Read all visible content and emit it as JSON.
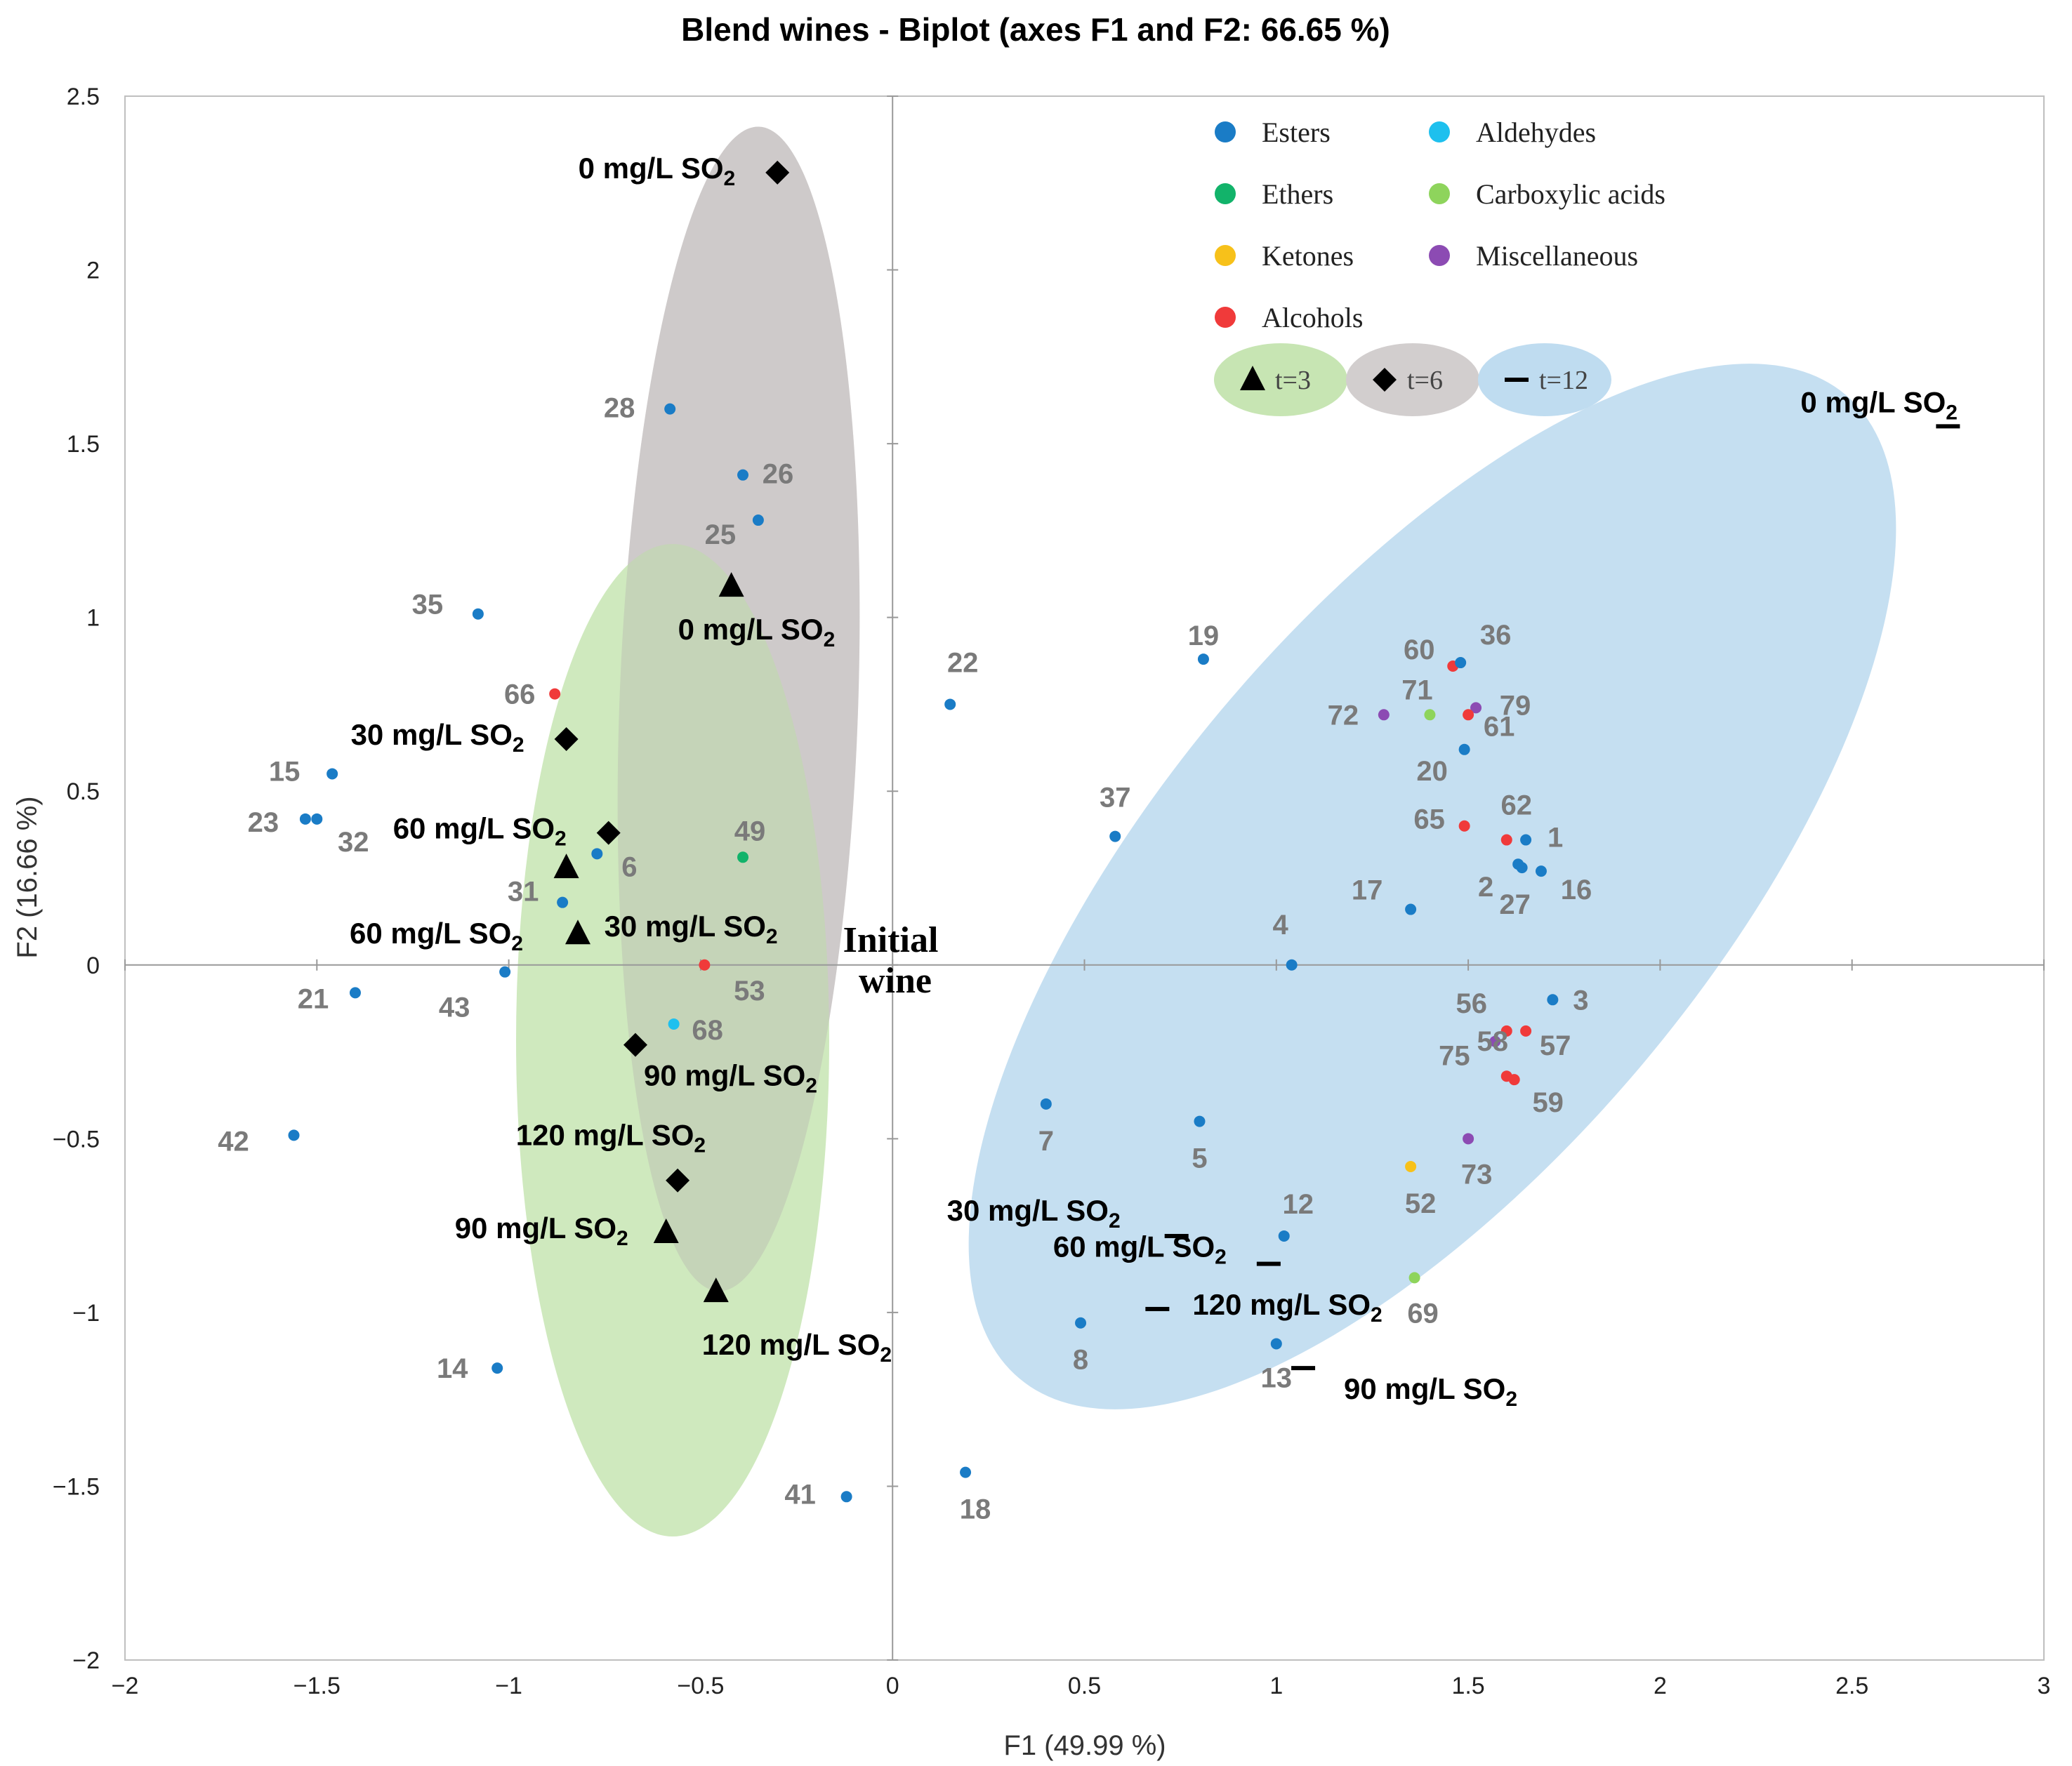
{
  "chart_data": {
    "type": "scatter",
    "title": "Blend wines - Biplot (axes F1 and F2: 66.65 %)",
    "xlabel": "F1 (49.99 %)",
    "ylabel": "F2 (16.66 %)",
    "xlim": [
      -2,
      3
    ],
    "ylim": [
      -2,
      2.5
    ],
    "xticks": [
      -2,
      -1.5,
      -1,
      -0.5,
      0,
      0.5,
      1,
      1.5,
      2,
      2.5,
      3
    ],
    "yticks": [
      -2,
      -1.5,
      -1,
      -0.5,
      0,
      0.5,
      1,
      1.5,
      2,
      2.5
    ],
    "xtick_labels": [
      "−2",
      "−1.5",
      "−1",
      "−0.5",
      "0",
      "0.5",
      "1",
      "1.5",
      "2",
      "2.5",
      "3"
    ],
    "ytick_labels": [
      "−2",
      "−1.5",
      "−1",
      "−0.5",
      "0",
      "0.5",
      "1",
      "1.5",
      "2",
      "2.5"
    ],
    "class_colors": {
      "Esters": "#1a7cc6",
      "Aldehydes": "#1ec0ee",
      "Ethers": "#12b36a",
      "Carboxylic acids": "#8ed45c",
      "Ketones": "#f7c11a",
      "Miscellaneous": "#8c4bb3",
      "Alcohols": "#f03a3a"
    },
    "legend": {
      "classes": [
        "Esters",
        "Ethers",
        "Ketones",
        "Alcohols",
        "Aldehydes",
        "Carboxylic acids",
        "Miscellaneous"
      ],
      "times": [
        {
          "label": "t=3",
          "marker": "triangle",
          "fill": "#c7e5b3"
        },
        {
          "label": "t=6",
          "marker": "diamond",
          "fill": "#d2cece"
        },
        {
          "label": "t=12",
          "marker": "dash",
          "fill": "#bfdcf0"
        }
      ],
      "position": "top-right"
    },
    "variables": [
      {
        "id": "28",
        "cls": "Esters",
        "x": -0.58,
        "y": 1.6
      },
      {
        "id": "26",
        "cls": "Esters",
        "x": -0.39,
        "y": 1.41
      },
      {
        "id": "25",
        "cls": "Esters",
        "x": -0.35,
        "y": 1.28
      },
      {
        "id": "35",
        "cls": "Esters",
        "x": -1.08,
        "y": 1.01
      },
      {
        "id": "66",
        "cls": "Alcohols",
        "x": -0.88,
        "y": 0.78
      },
      {
        "id": "15",
        "cls": "Esters",
        "x": -1.46,
        "y": 0.55
      },
      {
        "id": "23",
        "cls": "Esters",
        "x": -1.53,
        "y": 0.42
      },
      {
        "id": "32",
        "cls": "Esters",
        "x": -1.5,
        "y": 0.42
      },
      {
        "id": "6",
        "cls": "Esters",
        "x": -0.77,
        "y": 0.32
      },
      {
        "id": "49",
        "cls": "Ethers",
        "x": -0.39,
        "y": 0.31
      },
      {
        "id": "31",
        "cls": "Esters",
        "x": -0.86,
        "y": 0.18
      },
      {
        "id": "43",
        "cls": "Esters",
        "x": -1.01,
        "y": -0.02
      },
      {
        "id": "21",
        "cls": "Esters",
        "x": -1.4,
        "y": -0.08
      },
      {
        "id": "53",
        "cls": "Alcohols",
        "x": -0.49,
        "y": 0.0
      },
      {
        "id": "68",
        "cls": "Aldehydes",
        "x": -0.57,
        "y": -0.17
      },
      {
        "id": "42",
        "cls": "Esters",
        "x": -1.56,
        "y": -0.49
      },
      {
        "id": "14",
        "cls": "Esters",
        "x": -1.03,
        "y": -1.16
      },
      {
        "id": "41",
        "cls": "Esters",
        "x": -0.12,
        "y": -1.53
      },
      {
        "id": "22",
        "cls": "Esters",
        "x": 0.15,
        "y": 0.75
      },
      {
        "id": "37",
        "cls": "Esters",
        "x": 0.58,
        "y": 0.37
      },
      {
        "id": "19",
        "cls": "Esters",
        "x": 0.81,
        "y": 0.88
      },
      {
        "id": "7",
        "cls": "Esters",
        "x": 0.4,
        "y": -0.4
      },
      {
        "id": "5",
        "cls": "Esters",
        "x": 0.8,
        "y": -0.45
      },
      {
        "id": "8",
        "cls": "Esters",
        "x": 0.49,
        "y": -1.03
      },
      {
        "id": "18",
        "cls": "Esters",
        "x": 0.19,
        "y": -1.46
      },
      {
        "id": "4",
        "cls": "Esters",
        "x": 1.04,
        "y": 0.0
      },
      {
        "id": "12",
        "cls": "Esters",
        "x": 1.02,
        "y": -0.78
      },
      {
        "id": "13",
        "cls": "Esters",
        "x": 1.0,
        "y": -1.09
      },
      {
        "id": "60",
        "cls": "Alcohols",
        "x": 1.46,
        "y": 0.86
      },
      {
        "id": "36",
        "cls": "Esters",
        "x": 1.48,
        "y": 0.87
      },
      {
        "id": "71",
        "cls": "Carboxylic acids",
        "x": 1.4,
        "y": 0.72
      },
      {
        "id": "79",
        "cls": "Miscellaneous",
        "x": 1.52,
        "y": 0.74
      },
      {
        "id": "72",
        "cls": "Miscellaneous",
        "x": 1.28,
        "y": 0.72
      },
      {
        "id": "61",
        "cls": "Alcohols",
        "x": 1.5,
        "y": 0.72
      },
      {
        "id": "20",
        "cls": "Esters",
        "x": 1.49,
        "y": 0.62
      },
      {
        "id": "65",
        "cls": "Alcohols",
        "x": 1.49,
        "y": 0.4
      },
      {
        "id": "62",
        "cls": "Alcohols",
        "x": 1.6,
        "y": 0.36
      },
      {
        "id": "1",
        "cls": "Esters",
        "x": 1.65,
        "y": 0.36
      },
      {
        "id": "2",
        "cls": "Esters",
        "x": 1.63,
        "y": 0.29
      },
      {
        "id": "27",
        "cls": "Esters",
        "x": 1.64,
        "y": 0.28
      },
      {
        "id": "16",
        "cls": "Esters",
        "x": 1.69,
        "y": 0.27
      },
      {
        "id": "17",
        "cls": "Esters",
        "x": 1.35,
        "y": 0.16
      },
      {
        "id": "3",
        "cls": "Esters",
        "x": 1.72,
        "y": -0.1
      },
      {
        "id": "56",
        "cls": "Alcohols",
        "x": 1.6,
        "y": -0.19
      },
      {
        "id": "57",
        "cls": "Alcohols",
        "x": 1.65,
        "y": -0.19
      },
      {
        "id": "75",
        "cls": "Miscellaneous",
        "x": 1.57,
        "y": -0.22
      },
      {
        "id": "58",
        "cls": "Alcohols",
        "x": 1.6,
        "y": -0.32
      },
      {
        "id": "59",
        "cls": "Alcohols",
        "x": 1.62,
        "y": -0.33
      },
      {
        "id": "73",
        "cls": "Miscellaneous",
        "x": 1.5,
        "y": -0.5
      },
      {
        "id": "52",
        "cls": "Ketones",
        "x": 1.35,
        "y": -0.58
      },
      {
        "id": "69",
        "cls": "Carboxylic acids",
        "x": 1.36,
        "y": -0.9
      }
    ],
    "observations": [
      {
        "time": "t=6",
        "label": "0 mg/L SO",
        "sub": "2",
        "x": -0.3,
        "y": 2.28
      },
      {
        "time": "t=6",
        "label": "30 mg/L SO",
        "sub": "2",
        "x": -0.85,
        "y": 0.65
      },
      {
        "time": "t=6",
        "label": "60 mg/L SO",
        "sub": "2",
        "x": -0.74,
        "y": 0.38
      },
      {
        "time": "t=6",
        "label": "90 mg/L SO",
        "sub": "2",
        "x": -0.67,
        "y": -0.23
      },
      {
        "time": "t=6",
        "label": "120 mg/L SO",
        "sub": "2",
        "x": -0.56,
        "y": -0.62
      },
      {
        "time": "t=3",
        "label": "0 mg/L SO",
        "sub": "2",
        "x": -0.42,
        "y": 1.09
      },
      {
        "time": "t=3",
        "label": "30 mg/L SO",
        "sub": "2",
        "x": -0.85,
        "y": 0.28
      },
      {
        "time": "t=3",
        "label": "60 mg/L SO",
        "sub": "2",
        "x": -0.82,
        "y": 0.09
      },
      {
        "time": "t=3",
        "label": "90 mg/L SO",
        "sub": "2",
        "x": -0.59,
        "y": -0.77
      },
      {
        "time": "t=3",
        "label": "120 mg/L SO",
        "sub": "2",
        "x": -0.46,
        "y": -0.94
      },
      {
        "time": "t=12",
        "label": "0 mg/L SO",
        "sub": "2",
        "x": 2.75,
        "y": 1.55
      },
      {
        "time": "t=12",
        "label": "30 mg/L SO",
        "sub": "2",
        "x": 0.74,
        "y": -0.78
      },
      {
        "time": "t=12",
        "label": "60 mg/L SO",
        "sub": "2",
        "x": 0.98,
        "y": -0.86
      },
      {
        "time": "t=12",
        "label": "120 mg/L SO",
        "sub": "2",
        "x": 0.69,
        "y": -0.99
      },
      {
        "time": "t=12",
        "label": "90 mg/L SO",
        "sub": "2",
        "x": 1.07,
        "y": -1.16
      }
    ],
    "initial_wine": "Initial wine"
  }
}
